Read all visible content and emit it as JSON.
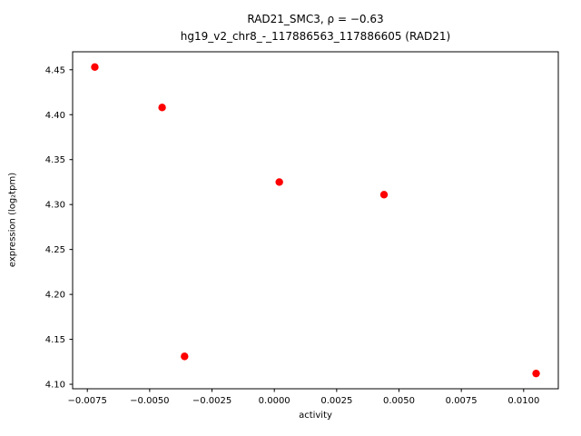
{
  "figure": {
    "title_line1": "RAD21_SMC3, ρ = −0.63",
    "title_line2": "hg19_v2_chr8_-_117886563_117886605 (RAD21)",
    "xlabel": "activity",
    "ylabel": "expression (log₂tpm)"
  },
  "chart_data": {
    "type": "scatter",
    "title": "RAD21_SMC3, ρ = −0.63\nhg19_v2_chr8_-_117886563_117886605 (RAD21)",
    "xlabel": "activity",
    "ylabel": "expression (log2 tpm)",
    "marker_color": "#ff0000",
    "grid": false,
    "points": [
      {
        "x": -0.0072,
        "y": 4.453
      },
      {
        "x": -0.0045,
        "y": 4.408
      },
      {
        "x": -0.0036,
        "y": 4.131
      },
      {
        "x": 0.0002,
        "y": 4.325
      },
      {
        "x": 0.0044,
        "y": 4.311
      },
      {
        "x": 0.0105,
        "y": 4.112
      }
    ],
    "xlim": [
      -0.00809,
      0.01139
    ],
    "ylim": [
      4.095,
      4.47
    ],
    "x_ticks": [
      -0.0075,
      -0.005,
      -0.0025,
      0.0,
      0.0025,
      0.005,
      0.0075,
      0.01
    ],
    "x_tick_labels": [
      "−0.0075",
      "−0.0050",
      "−0.0025",
      "0.0000",
      "0.0025",
      "0.0050",
      "0.0075",
      "0.0100"
    ],
    "y_ticks": [
      4.1,
      4.15,
      4.2,
      4.25,
      4.3,
      4.35,
      4.4,
      4.45
    ],
    "y_tick_labels": [
      "4.10",
      "4.15",
      "4.20",
      "4.25",
      "4.30",
      "4.35",
      "4.40",
      "4.45"
    ]
  }
}
